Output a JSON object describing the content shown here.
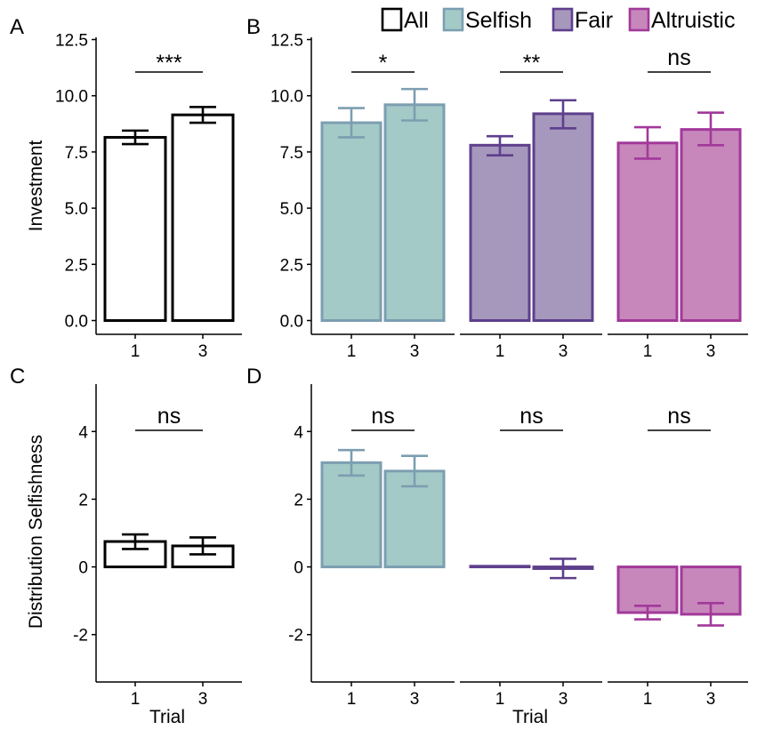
{
  "legend": {
    "items": [
      {
        "label": "All",
        "fill": "#ffffff",
        "stroke": "#000000"
      },
      {
        "label": "Selfish",
        "fill": "#a4cac7",
        "stroke": "#7c9eb1"
      },
      {
        "label": "Fair",
        "fill": "#a697bd",
        "stroke": "#5e3f8c"
      },
      {
        "label": "Altruistic",
        "fill": "#c787bb",
        "stroke": "#a2399a"
      }
    ]
  },
  "chart_data": [
    {
      "panel": "A",
      "type": "bar",
      "ylabel": "Investment",
      "xlabel": "",
      "ylim": [
        0,
        12.5
      ],
      "yticks": [
        "0.0",
        "2.5",
        "5.0",
        "7.5",
        "10.0",
        "12.5"
      ],
      "groups": [
        {
          "group": "All",
          "categories": [
            "1",
            "3"
          ],
          "values": [
            8.15,
            9.15
          ],
          "errors": [
            [
              7.85,
              8.45
            ],
            [
              8.8,
              9.5
            ]
          ],
          "significance": "***"
        }
      ]
    },
    {
      "panel": "B",
      "type": "bar",
      "ylabel": "",
      "xlabel": "",
      "ylim": [
        0,
        12.5
      ],
      "yticks": [
        "0.0",
        "2.5",
        "5.0",
        "7.5",
        "10.0",
        "12.5"
      ],
      "groups": [
        {
          "group": "Selfish",
          "categories": [
            "1",
            "3"
          ],
          "values": [
            8.8,
            9.6
          ],
          "errors": [
            [
              8.15,
              9.45
            ],
            [
              8.9,
              10.3
            ]
          ],
          "significance": "*"
        },
        {
          "group": "Fair",
          "categories": [
            "1",
            "3"
          ],
          "values": [
            7.8,
            9.2
          ],
          "errors": [
            [
              7.35,
              8.2
            ],
            [
              8.55,
              9.8
            ]
          ],
          "significance": "**"
        },
        {
          "group": "Altruistic",
          "categories": [
            "1",
            "3"
          ],
          "values": [
            7.9,
            8.5
          ],
          "errors": [
            [
              7.2,
              8.6
            ],
            [
              7.8,
              9.25
            ]
          ],
          "significance": "ns"
        }
      ]
    },
    {
      "panel": "C",
      "type": "bar",
      "ylabel": "Distribution Selfishness",
      "xlabel": "Trial",
      "ylim": [
        -3.4,
        5.4
      ],
      "yticks": [
        "-2",
        "0",
        "2",
        "4"
      ],
      "groups": [
        {
          "group": "All",
          "categories": [
            "1",
            "3"
          ],
          "values": [
            0.75,
            0.62
          ],
          "errors": [
            [
              0.53,
              0.96
            ],
            [
              0.37,
              0.87
            ]
          ],
          "significance": "ns"
        }
      ]
    },
    {
      "panel": "D",
      "type": "bar",
      "ylabel": "",
      "xlabel": "Trial",
      "ylim": [
        -3.4,
        5.4
      ],
      "yticks": [
        "-2",
        "0",
        "2",
        "4"
      ],
      "groups": [
        {
          "group": "Selfish",
          "categories": [
            "1",
            "3"
          ],
          "values": [
            3.08,
            2.83
          ],
          "errors": [
            [
              2.7,
              3.45
            ],
            [
              2.38,
              3.28
            ]
          ],
          "significance": "ns"
        },
        {
          "group": "Fair",
          "categories": [
            "1",
            "3"
          ],
          "values": [
            0.02,
            -0.05
          ],
          "errors": [
            [
              0.02,
              0.02
            ],
            [
              -0.33,
              0.24
            ]
          ],
          "significance": "ns"
        },
        {
          "group": "Altruistic",
          "categories": [
            "1",
            "3"
          ],
          "values": [
            -1.35,
            -1.4
          ],
          "errors": [
            [
              -1.55,
              -1.15
            ],
            [
              -1.73,
              -1.07
            ]
          ],
          "significance": "ns"
        }
      ]
    }
  ]
}
